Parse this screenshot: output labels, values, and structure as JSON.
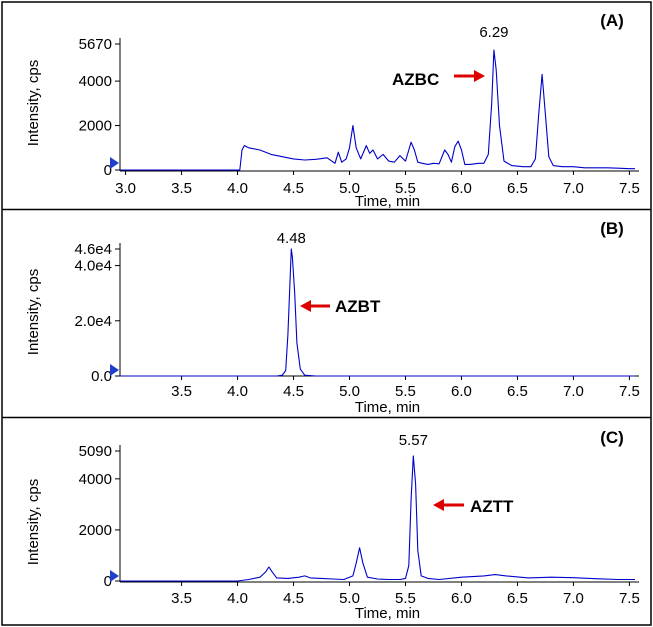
{
  "chart_data": [
    {
      "type": "line",
      "panel_label": "(A)",
      "xlabel": "Time, min",
      "ylabel": "Intensity, cps",
      "xlim": [
        2.95,
        7.55
      ],
      "ylim": [
        0,
        5670
      ],
      "x_ticks": [
        "3.0",
        "3.5",
        "4.0",
        "4.5",
        "5.0",
        "5.5",
        "6.0",
        "6.5",
        "7.0",
        "7.5"
      ],
      "x_tick_values": [
        3.0,
        3.5,
        4.0,
        4.5,
        5.0,
        5.5,
        6.0,
        6.5,
        7.0,
        7.5
      ],
      "y_ticks": [
        "0",
        "2000",
        "4000",
        "5670"
      ],
      "y_tick_values": [
        0,
        2000,
        4000,
        5670
      ],
      "line_color": "#0000cc",
      "peak_label": {
        "text": "6.29",
        "x": 6.29,
        "y": 5670
      },
      "compound_label": "AZBC",
      "arrow_color": "#dd0000",
      "series": [
        {
          "x": [
            2.95,
            4.02,
            4.04,
            4.06,
            4.1,
            4.2,
            4.3,
            4.4,
            4.5,
            4.6,
            4.7,
            4.8,
            4.87,
            4.9,
            4.93,
            4.97,
            5.0,
            5.03,
            5.06,
            5.1,
            5.15,
            5.18,
            5.21,
            5.25,
            5.3,
            5.35,
            5.4,
            5.45,
            5.5,
            5.53,
            5.55,
            5.58,
            5.61,
            5.65,
            5.7,
            5.75,
            5.8,
            5.85,
            5.88,
            5.91,
            5.94,
            5.97,
            6.0,
            6.03,
            6.08,
            6.15,
            6.2,
            6.24,
            6.27,
            6.29,
            6.31,
            6.34,
            6.38,
            6.45,
            6.55,
            6.62,
            6.66,
            6.69,
            6.72,
            6.75,
            6.78,
            6.82,
            6.9,
            7.0,
            7.1,
            7.2,
            7.3,
            7.4,
            7.5,
            7.55
          ],
          "y": [
            0,
            0,
            900,
            1100,
            1000,
            900,
            700,
            600,
            500,
            450,
            480,
            550,
            300,
            800,
            350,
            500,
            1000,
            2000,
            1000,
            500,
            1100,
            750,
            900,
            500,
            700,
            400,
            350,
            650,
            400,
            900,
            1250,
            900,
            350,
            300,
            250,
            300,
            280,
            900,
            700,
            350,
            1050,
            1300,
            900,
            250,
            250,
            300,
            300,
            700,
            3000,
            5400,
            4500,
            2000,
            400,
            200,
            150,
            150,
            500,
            2500,
            4300,
            2500,
            600,
            200,
            150,
            150,
            100,
            100,
            100,
            80,
            60,
            60
          ]
        }
      ]
    },
    {
      "type": "line",
      "panel_label": "(B)",
      "xlabel": "Time, min",
      "ylabel": "Intensity, cps",
      "xlim": [
        2.95,
        7.55
      ],
      "ylim": [
        0,
        46000
      ],
      "x_ticks": [
        "3.5",
        "4.0",
        "4.5",
        "5.0",
        "5.5",
        "6.0",
        "6.5",
        "7.0",
        "7.5"
      ],
      "x_tick_values": [
        3.5,
        4.0,
        4.5,
        5.0,
        5.5,
        6.0,
        6.5,
        7.0,
        7.5
      ],
      "y_ticks": [
        "0.0",
        "2.0e4",
        "4.0e4",
        "4.6e4"
      ],
      "y_tick_values": [
        0,
        20000,
        40000,
        46000
      ],
      "line_color": "#0000cc",
      "peak_label": {
        "text": "4.48",
        "x": 4.48,
        "y": 46000
      },
      "compound_label": "AZBT",
      "arrow_color": "#dd0000",
      "series": [
        {
          "x": [
            2.95,
            4.35,
            4.4,
            4.43,
            4.45,
            4.47,
            4.48,
            4.49,
            4.51,
            4.53,
            4.56,
            4.6,
            4.7,
            7.55
          ],
          "y": [
            0,
            0,
            300,
            2000,
            15000,
            36000,
            46000,
            43000,
            30000,
            12000,
            2500,
            300,
            0,
            0
          ]
        }
      ]
    },
    {
      "type": "line",
      "panel_label": "(C)",
      "xlabel": "Time, min",
      "ylabel": "Intensity, cps",
      "xlim": [
        2.95,
        7.55
      ],
      "ylim": [
        0,
        5090
      ],
      "x_ticks": [
        "3.5",
        "4.0",
        "4.5",
        "5.0",
        "5.5",
        "6.0",
        "6.5",
        "7.0",
        "7.5"
      ],
      "x_tick_values": [
        3.5,
        4.0,
        4.5,
        5.0,
        5.5,
        6.0,
        6.5,
        7.0,
        7.5
      ],
      "y_ticks": [
        "0",
        "2000",
        "4000",
        "5090"
      ],
      "y_tick_values": [
        0,
        2000,
        4000,
        5090
      ],
      "line_color": "#0000cc",
      "peak_label": {
        "text": "5.57",
        "x": 5.57,
        "y": 5090
      },
      "compound_label": "AZTT",
      "arrow_color": "#dd0000",
      "series": [
        {
          "x": [
            2.95,
            4.0,
            4.1,
            4.2,
            4.25,
            4.28,
            4.31,
            4.35,
            4.45,
            4.55,
            4.6,
            4.65,
            4.75,
            4.85,
            4.95,
            5.03,
            5.06,
            5.09,
            5.12,
            5.16,
            5.25,
            5.35,
            5.45,
            5.5,
            5.53,
            5.55,
            5.57,
            5.59,
            5.61,
            5.64,
            5.7,
            5.8,
            6.0,
            6.2,
            6.3,
            6.4,
            6.6,
            6.8,
            7.0,
            7.2,
            7.4,
            7.55
          ],
          "y": [
            0,
            0,
            60,
            150,
            350,
            550,
            350,
            120,
            100,
            150,
            200,
            120,
            100,
            80,
            60,
            200,
            700,
            1300,
            700,
            150,
            80,
            60,
            60,
            100,
            600,
            3200,
            4900,
            3800,
            1200,
            200,
            100,
            60,
            150,
            200,
            250,
            200,
            120,
            150,
            130,
            90,
            60,
            60
          ]
        }
      ]
    }
  ]
}
